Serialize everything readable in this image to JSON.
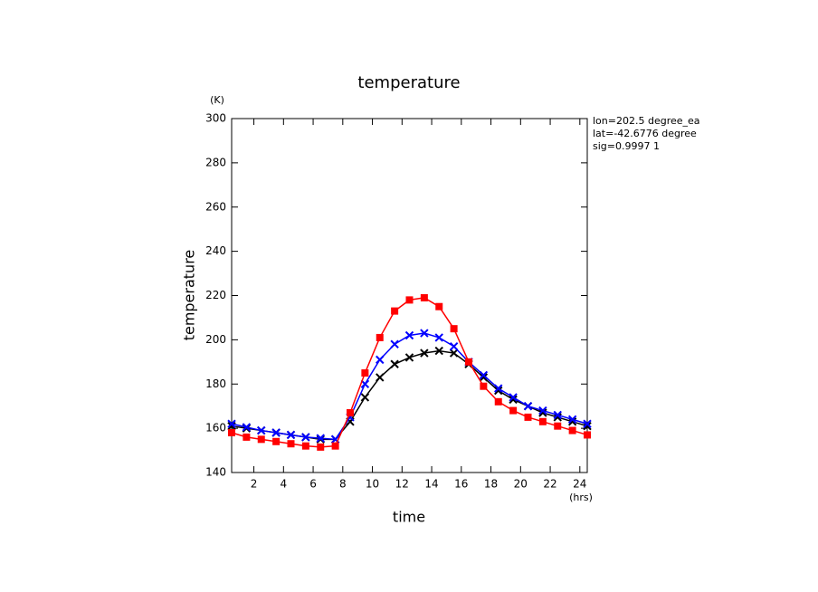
{
  "chart_data": {
    "type": "line",
    "title": "temperature",
    "xlabel": "time",
    "ylabel": "temperature",
    "xunit": "(hrs)",
    "yunit": "(K)",
    "annotations": [
      "lon=202.5 degree_ea",
      "lat=-42.6776 degree",
      "sig=0.9997 1"
    ],
    "x": [
      0.5,
      1.5,
      2.5,
      3.5,
      4.5,
      5.5,
      6.5,
      7.5,
      8.5,
      9.5,
      10.5,
      11.5,
      12.5,
      13.5,
      14.5,
      15.5,
      16.5,
      17.5,
      18.5,
      19.5,
      20.5,
      21.5,
      22.5,
      23.5,
      24.5
    ],
    "series": [
      {
        "color": "#000000",
        "marker": "x",
        "values": [
          161,
          160,
          159,
          158,
          157,
          156,
          155,
          155,
          163,
          174,
          183,
          189,
          192,
          194,
          195,
          194,
          189,
          183,
          177,
          173,
          170,
          167,
          165,
          163,
          161
        ]
      },
      {
        "color": "#0000ff",
        "marker": "x",
        "values": [
          162,
          160.5,
          159,
          158,
          157,
          156,
          155.5,
          155,
          165,
          180,
          191,
          198,
          202,
          203,
          201,
          197,
          190,
          184,
          178,
          174,
          170,
          168,
          166,
          164,
          162
        ]
      },
      {
        "color": "#ff0000",
        "marker": "square",
        "values": [
          158,
          156,
          155,
          154,
          153,
          152,
          151.5,
          152,
          167,
          185,
          201,
          213,
          218,
          219,
          215,
          205,
          190,
          179,
          172,
          168,
          165,
          163,
          161,
          159,
          157
        ]
      }
    ],
    "xlim": [
      0.5,
      24.5
    ],
    "xticks": [
      2,
      4,
      6,
      8,
      10,
      12,
      14,
      16,
      18,
      20,
      22,
      24
    ],
    "ylim": [
      140,
      300
    ],
    "yticks": [
      140,
      160,
      180,
      200,
      220,
      240,
      260,
      280,
      300
    ]
  }
}
